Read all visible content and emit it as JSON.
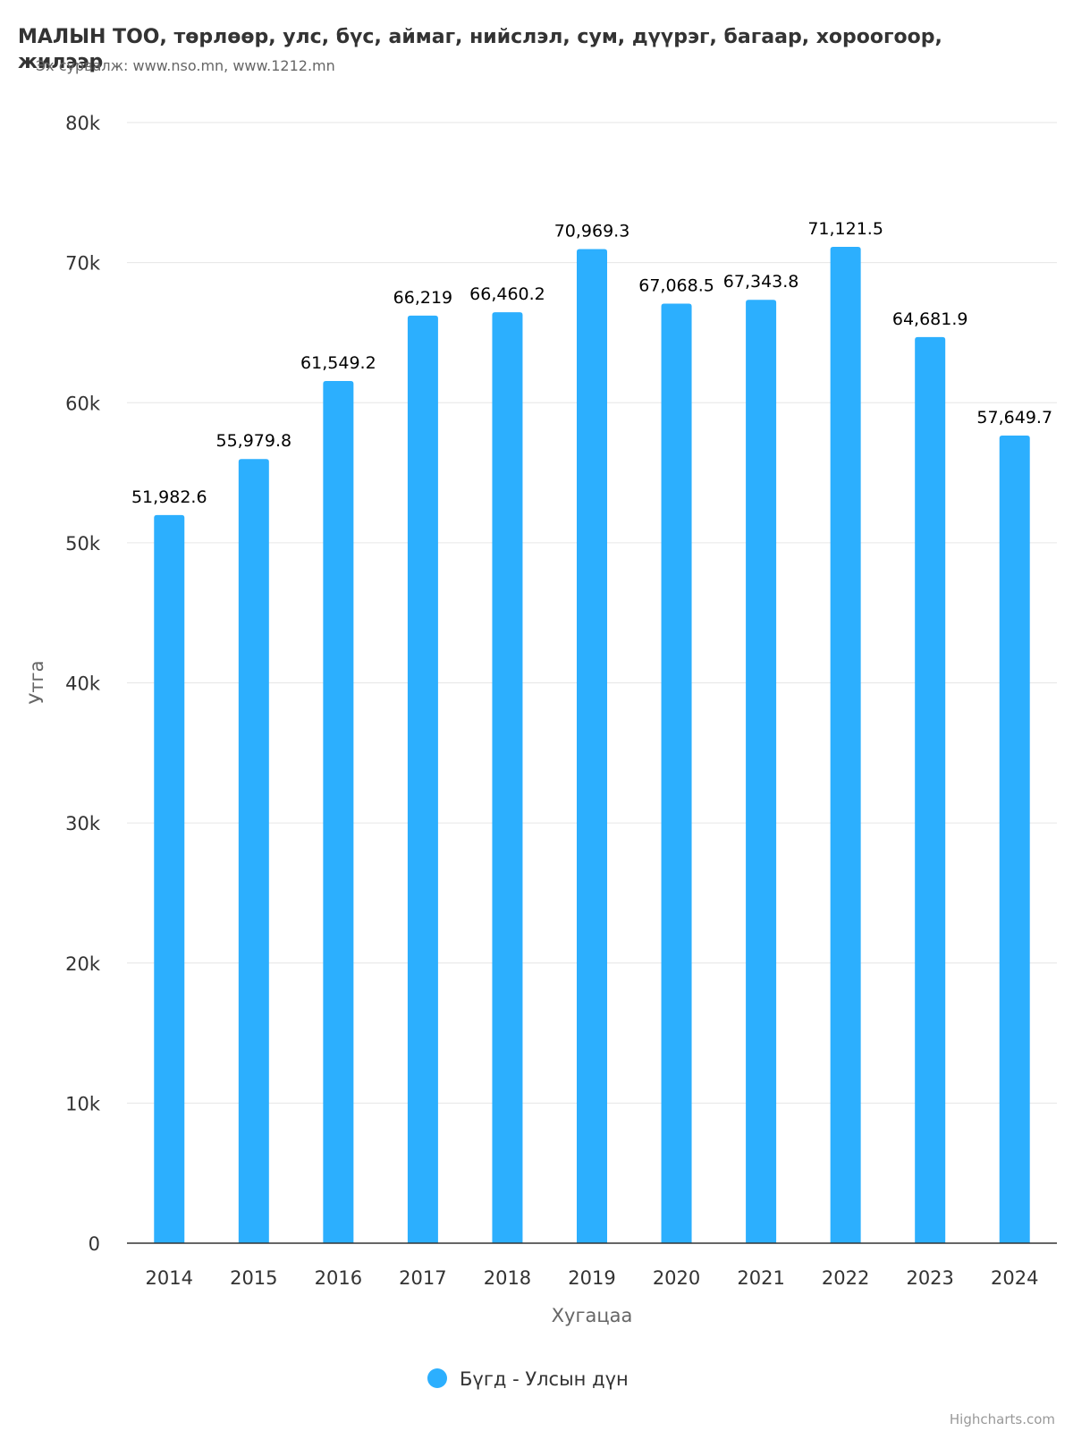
{
  "chart_data": {
    "type": "bar",
    "title": "МАЛЫН ТОО, төрлөөр, улс, бүс, аймаг, нийслэл, сум, дүүрэг, багаар, хороогоор, жилээр",
    "subtitle": "Эх сурвалж: www.nso.mn, www.1212.mn",
    "xlabel": "Хугацаа",
    "ylabel": "Утга",
    "categories": [
      "2014",
      "2015",
      "2016",
      "2017",
      "2018",
      "2019",
      "2020",
      "2021",
      "2022",
      "2023",
      "2024"
    ],
    "series": [
      {
        "name": "Бүгд - Улсын дүн",
        "color": "#2caffe",
        "values": [
          51982.6,
          55979.8,
          61549.2,
          66219,
          66460.2,
          70969.3,
          67068.5,
          67343.8,
          71121.5,
          64681.9,
          57649.7
        ],
        "labels": [
          "51,982.6",
          "55,979.8",
          "61,549.2",
          "66,219",
          "66,460.2",
          "70,969.3",
          "67,068.5",
          "67,343.8",
          "71,121.5",
          "64,681.9",
          "57,649.7"
        ]
      }
    ],
    "ylim": [
      0,
      80000
    ],
    "yticks": [
      0,
      10000,
      20000,
      30000,
      40000,
      50000,
      60000,
      70000,
      80000
    ],
    "ytick_labels": [
      "0",
      "10k",
      "20k",
      "30k",
      "40k",
      "50k",
      "60k",
      "70k",
      "80k"
    ],
    "grid": true,
    "legend_position": "bottom-center",
    "credits": "Highcharts.com"
  }
}
